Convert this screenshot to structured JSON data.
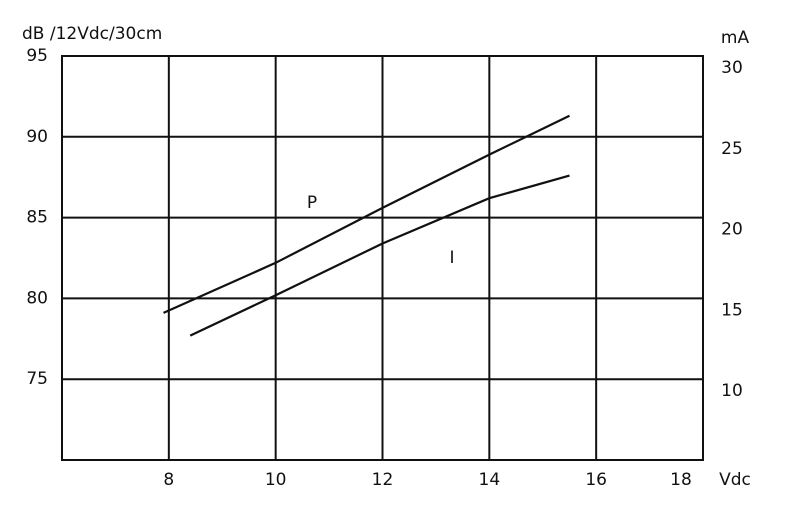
{
  "chart_data": {
    "type": "line",
    "y_label": "dB /12Vdc/30cm",
    "y2_label": "mA",
    "x_label": "Vdc",
    "xlim": [
      6,
      18
    ],
    "xticks": [
      8,
      10,
      12,
      14,
      16,
      18
    ],
    "ylim": [
      70,
      95
    ],
    "yticks": [
      75,
      80,
      85,
      90,
      95
    ],
    "y2lim": [
      5,
      30
    ],
    "y2ticks": [
      10,
      15,
      20,
      25,
      30
    ],
    "grid": true,
    "series": [
      {
        "name": "P",
        "color": "#111111",
        "x": [
          7.9,
          10,
          12,
          14,
          15.5
        ],
        "values": [
          79.1,
          82.2,
          85.6,
          88.9,
          91.3
        ]
      },
      {
        "name": "I",
        "color": "#111111",
        "axis": "y2",
        "x": [
          8.4,
          10,
          12,
          14,
          15.5
        ],
        "values": [
          12.7,
          15.2,
          18.4,
          21.2,
          22.6
        ]
      }
    ]
  }
}
